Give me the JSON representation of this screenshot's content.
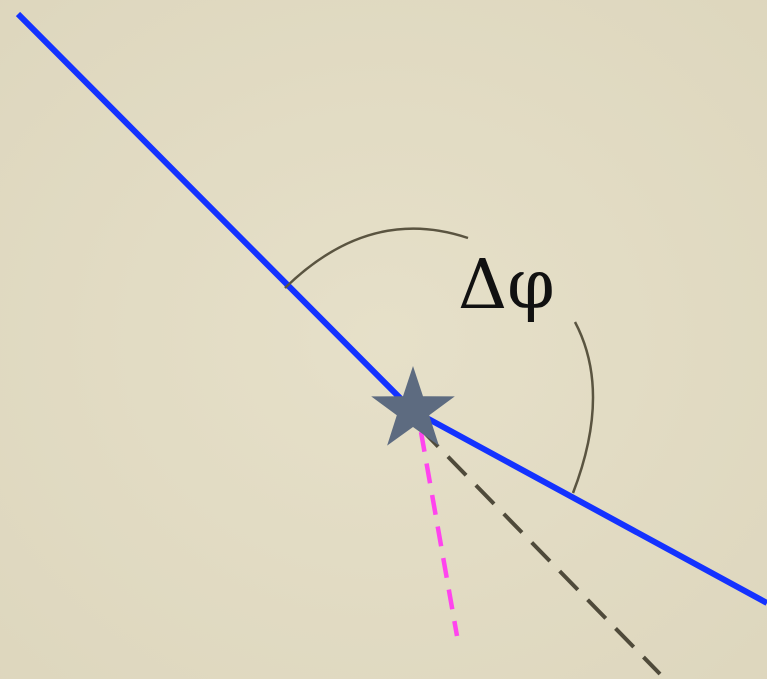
{
  "annotations": [
    {
      "text": "Δφ"
    }
  ]
}
